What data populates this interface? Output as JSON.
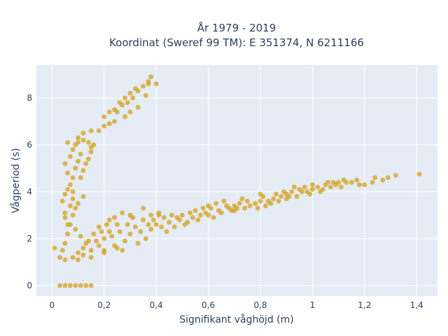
{
  "chart_data": {
    "type": "scatter",
    "title_line1": "År 1979 - 2019",
    "title_line2": "Koordinat (Sweref 99 TM): E 351374, N 6211166",
    "xlabel": "Signifikant våghöjd (m)",
    "ylabel": "Vågperiod (s)",
    "xlim": [
      -0.06,
      1.48
    ],
    "ylim": [
      -0.45,
      9.4
    ],
    "x_ticks": [
      0,
      0.2,
      0.4,
      0.6,
      0.8,
      1,
      1.2,
      1.4
    ],
    "x_tick_labels": [
      "0",
      "0,2",
      "0,4",
      "0,6",
      "0,8",
      "1",
      "1,2",
      "1,4"
    ],
    "y_ticks": [
      0,
      2,
      4,
      6,
      8
    ],
    "y_tick_labels": [
      "0",
      "2",
      "4",
      "6",
      "8"
    ],
    "grid": true,
    "background": "#e5ecf6",
    "marker_color": "#d4a11e",
    "series": [
      {
        "values": [
          [
            0.03,
            0.0
          ],
          [
            0.05,
            0.0
          ],
          [
            0.07,
            0.0
          ],
          [
            0.09,
            0.0
          ],
          [
            0.11,
            0.0
          ],
          [
            0.13,
            0.0
          ],
          [
            0.15,
            0.0
          ],
          [
            0.01,
            1.6
          ],
          [
            0.03,
            1.2
          ],
          [
            0.04,
            1.5
          ],
          [
            0.05,
            1.8
          ],
          [
            0.06,
            2.2
          ],
          [
            0.07,
            2.6
          ],
          [
            0.08,
            3.0
          ],
          [
            0.05,
            1.1
          ],
          [
            0.08,
            1.2
          ],
          [
            0.1,
            1.4
          ],
          [
            0.12,
            1.6
          ],
          [
            0.14,
            1.9
          ],
          [
            0.16,
            2.2
          ],
          [
            0.18,
            2.5
          ],
          [
            0.1,
            1.1
          ],
          [
            0.12,
            1.3
          ],
          [
            0.15,
            1.5
          ],
          [
            0.18,
            1.7
          ],
          [
            0.2,
            2.0
          ],
          [
            0.22,
            2.3
          ],
          [
            0.25,
            2.6
          ],
          [
            0.15,
            1.2
          ],
          [
            0.2,
            1.4
          ],
          [
            0.25,
            1.6
          ],
          [
            0.28,
            1.9
          ],
          [
            0.3,
            2.2
          ],
          [
            0.32,
            2.5
          ],
          [
            0.35,
            2.8
          ],
          [
            0.2,
            1.5
          ],
          [
            0.24,
            1.7
          ],
          [
            0.27,
            1.5
          ],
          [
            0.33,
            1.8
          ],
          [
            0.36,
            2.0
          ],
          [
            0.38,
            2.4
          ],
          [
            0.4,
            2.6
          ],
          [
            0.42,
            2.5
          ],
          [
            0.45,
            2.7
          ],
          [
            0.48,
            2.9
          ],
          [
            0.5,
            3.0
          ],
          [
            0.53,
            3.1
          ],
          [
            0.55,
            3.2
          ],
          [
            0.58,
            3.3
          ],
          [
            0.44,
            2.3
          ],
          [
            0.47,
            2.5
          ],
          [
            0.52,
            2.7
          ],
          [
            0.56,
            2.8
          ],
          [
            0.6,
            3.0
          ],
          [
            0.62,
            2.9
          ],
          [
            0.65,
            3.1
          ],
          [
            0.6,
            3.4
          ],
          [
            0.63,
            3.5
          ],
          [
            0.66,
            3.6
          ],
          [
            0.68,
            3.3
          ],
          [
            0.7,
            3.4
          ],
          [
            0.72,
            3.5
          ],
          [
            0.75,
            3.6
          ],
          [
            0.7,
            3.2
          ],
          [
            0.74,
            3.3
          ],
          [
            0.78,
            3.5
          ],
          [
            0.8,
            3.6
          ],
          [
            0.82,
            3.4
          ],
          [
            0.85,
            3.7
          ],
          [
            0.88,
            3.8
          ],
          [
            0.8,
            3.9
          ],
          [
            0.83,
            3.6
          ],
          [
            0.86,
            3.9
          ],
          [
            0.9,
            3.9
          ],
          [
            0.92,
            4.0
          ],
          [
            0.95,
            4.1
          ],
          [
            0.98,
            4.0
          ],
          [
            0.9,
            3.7
          ],
          [
            0.94,
            3.8
          ],
          [
            0.97,
            4.2
          ],
          [
            1.0,
            4.1
          ],
          [
            1.02,
            4.2
          ],
          [
            1.05,
            4.3
          ],
          [
            1.08,
            4.4
          ],
          [
            1.0,
            4.3
          ],
          [
            1.04,
            4.1
          ],
          [
            1.07,
            4.2
          ],
          [
            1.1,
            4.4
          ],
          [
            1.12,
            4.5
          ],
          [
            1.15,
            4.4
          ],
          [
            1.18,
            4.3
          ],
          [
            0.35,
            3.3
          ],
          [
            0.38,
            3.0
          ],
          [
            0.41,
            3.1
          ],
          [
            0.3,
            3.0
          ],
          [
            0.27,
            3.1
          ],
          [
            0.24,
            2.9
          ],
          [
            0.22,
            2.8
          ],
          [
            0.09,
            3.3
          ],
          [
            0.1,
            3.5
          ],
          [
            0.12,
            3.8
          ],
          [
            0.08,
            4.0
          ],
          [
            0.07,
            4.3
          ],
          [
            0.06,
            4.8
          ],
          [
            0.05,
            5.2
          ],
          [
            0.04,
            3.6
          ],
          [
            0.05,
            3.9
          ],
          [
            0.06,
            4.1
          ],
          [
            0.08,
            4.6
          ],
          [
            0.09,
            5.0
          ],
          [
            0.1,
            5.3
          ],
          [
            0.11,
            5.6
          ],
          [
            0.07,
            5.5
          ],
          [
            0.08,
            5.8
          ],
          [
            0.09,
            6.0
          ],
          [
            0.1,
            6.1
          ],
          [
            0.12,
            6.2
          ],
          [
            0.14,
            6.1
          ],
          [
            0.15,
            5.9
          ],
          [
            0.11,
            4.6
          ],
          [
            0.12,
            4.9
          ],
          [
            0.13,
            5.2
          ],
          [
            0.14,
            5.4
          ],
          [
            0.15,
            5.7
          ],
          [
            0.16,
            6.0
          ],
          [
            0.06,
            6.1
          ],
          [
            0.1,
            6.3
          ],
          [
            0.12,
            6.5
          ],
          [
            0.15,
            6.6
          ],
          [
            0.18,
            6.6
          ],
          [
            0.2,
            6.8
          ],
          [
            0.22,
            6.9
          ],
          [
            0.24,
            7.0
          ],
          [
            0.2,
            7.2
          ],
          [
            0.22,
            7.4
          ],
          [
            0.24,
            7.5
          ],
          [
            0.26,
            7.8
          ],
          [
            0.28,
            8.0
          ],
          [
            0.3,
            8.2
          ],
          [
            0.32,
            8.4
          ],
          [
            0.25,
            7.4
          ],
          [
            0.27,
            7.7
          ],
          [
            0.29,
            7.8
          ],
          [
            0.31,
            8.0
          ],
          [
            0.33,
            8.3
          ],
          [
            0.35,
            8.5
          ],
          [
            0.37,
            8.7
          ],
          [
            0.28,
            7.2
          ],
          [
            0.3,
            7.4
          ],
          [
            0.33,
            7.6
          ],
          [
            0.36,
            8.1
          ],
          [
            0.38,
            8.9
          ],
          [
            0.37,
            8.6
          ],
          [
            0.4,
            8.6
          ],
          [
            0.05,
            3.1
          ],
          [
            0.07,
            3.4
          ],
          [
            0.08,
            3.7
          ],
          [
            0.05,
            2.9
          ],
          [
            0.06,
            2.6
          ],
          [
            0.09,
            2.4
          ],
          [
            0.11,
            2.1
          ],
          [
            0.13,
            1.8
          ],
          [
            0.17,
            1.9
          ],
          [
            0.19,
            2.3
          ],
          [
            0.21,
            2.6
          ],
          [
            0.23,
            2.1
          ],
          [
            0.26,
            2.3
          ],
          [
            0.29,
            2.6
          ],
          [
            0.31,
            2.9
          ],
          [
            0.34,
            2.3
          ],
          [
            0.37,
            2.6
          ],
          [
            0.39,
            2.8
          ],
          [
            0.41,
            3.0
          ],
          [
            0.43,
            2.9
          ],
          [
            0.46,
            3.0
          ],
          [
            0.49,
            2.8
          ],
          [
            0.51,
            2.6
          ],
          [
            0.54,
            2.9
          ],
          [
            0.57,
            3.0
          ],
          [
            0.59,
            3.1
          ],
          [
            0.61,
            3.3
          ],
          [
            0.64,
            3.2
          ],
          [
            0.67,
            3.4
          ],
          [
            0.69,
            3.2
          ],
          [
            0.71,
            3.3
          ],
          [
            0.73,
            3.7
          ],
          [
            0.76,
            3.4
          ],
          [
            0.79,
            3.3
          ],
          [
            0.81,
            3.8
          ],
          [
            0.84,
            3.5
          ],
          [
            0.87,
            3.6
          ],
          [
            0.89,
            4.0
          ],
          [
            0.91,
            3.8
          ],
          [
            0.93,
            4.2
          ],
          [
            0.96,
            4.0
          ],
          [
            0.99,
            3.9
          ],
          [
            1.03,
            4.0
          ],
          [
            1.06,
            4.4
          ],
          [
            1.09,
            4.3
          ],
          [
            1.11,
            4.2
          ],
          [
            1.13,
            4.4
          ],
          [
            1.17,
            4.5
          ],
          [
            1.2,
            4.3
          ],
          [
            1.23,
            4.4
          ],
          [
            1.24,
            4.6
          ],
          [
            1.27,
            4.5
          ],
          [
            1.29,
            4.6
          ],
          [
            1.32,
            4.7
          ],
          [
            1.41,
            4.75
          ]
        ]
      }
    ]
  }
}
